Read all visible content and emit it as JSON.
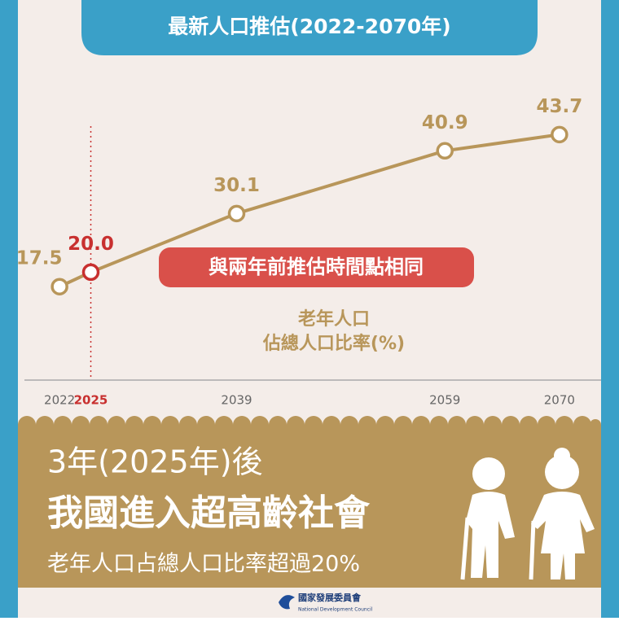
{
  "header": {
    "title": "最新人口推估(2022-2070年)"
  },
  "chart_data": {
    "type": "line",
    "x": [
      2022,
      2025,
      2039,
      2059,
      2070
    ],
    "series": [
      {
        "name": "老年人口佔總人口比率(%)",
        "color": "#b8965a",
        "values": [
          17.5,
          20,
          30.1,
          40.9,
          43.7
        ],
        "value_labels": [
          "17.5",
          "20.0",
          "30.1",
          "40.9",
          "43.7"
        ]
      }
    ],
    "point_colors": [
      "#b8965a",
      "#c8302f",
      "#b8965a",
      "#b8965a",
      "#b8965a"
    ],
    "xlim": [
      2018,
      2074
    ],
    "xticks": [
      2022,
      2025,
      2039,
      2059,
      2070
    ],
    "ylim": [
      0,
      53
    ],
    "reference_line": {
      "x": 2025,
      "color": "#c8302f"
    },
    "annotation": "與兩年前推估時間點相同",
    "y_label": [
      "老年人口",
      "佔總人口比率(%)"
    ]
  },
  "banner": {
    "line1": "3年(2025年)後",
    "line2": "我國進入超高齡社會",
    "line3": "老年人口占總人口比率超過20%"
  },
  "footer": {
    "org": "國家發展委員會",
    "org_en": "National Development Council"
  }
}
